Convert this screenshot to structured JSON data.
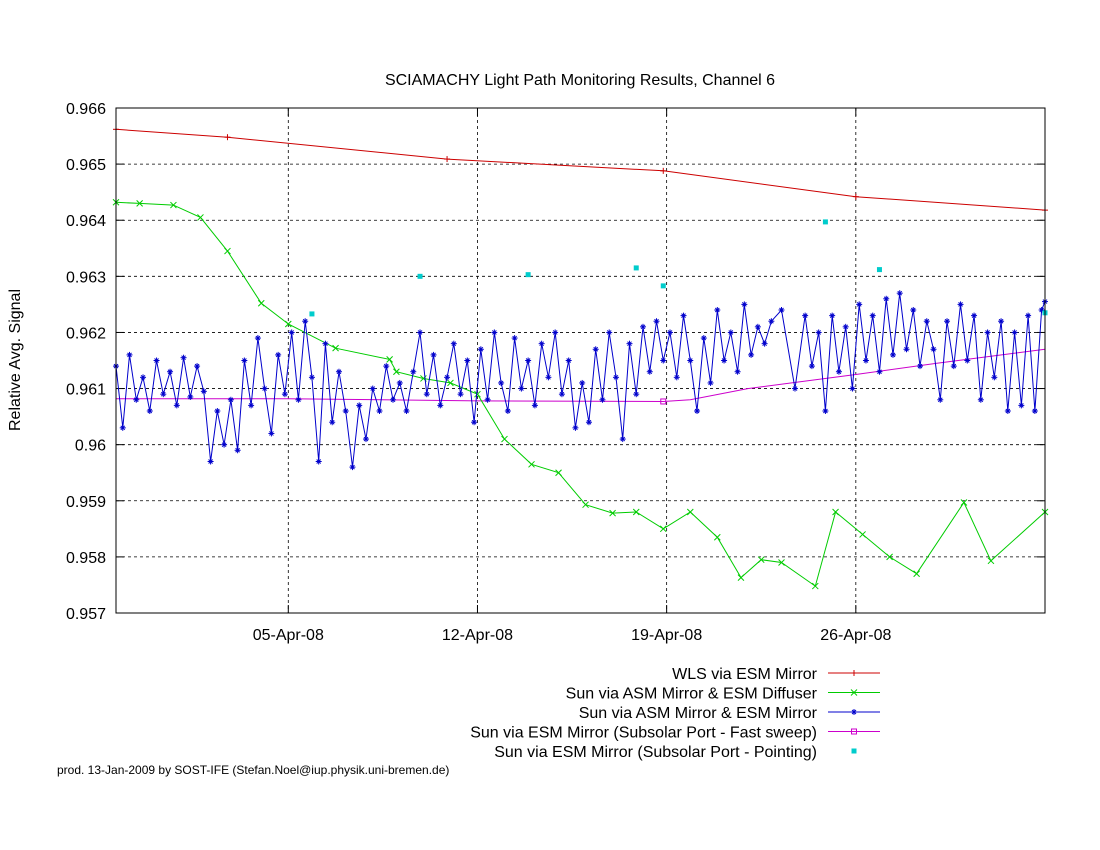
{
  "chart_data": {
    "type": "line",
    "title": "SCIAMACHY Light Path Monitoring Results, Channel 6",
    "xlabel": "",
    "ylabel": "Relative Avg. Signal",
    "x_axis_type": "date",
    "xlim": [
      "2008-03-29T15:00",
      "2008-05-03T00:00"
    ],
    "ylim": [
      0.957,
      0.966
    ],
    "x_ticks": [
      "05-Apr-08",
      "12-Apr-08",
      "19-Apr-08",
      "26-Apr-08"
    ],
    "y_ticks": [
      "0.957",
      "0.958",
      "0.959",
      "0.96",
      "0.961",
      "0.962",
      "0.963",
      "0.964",
      "0.965",
      "0.966"
    ],
    "grid": true,
    "legend_position": "below-plot-right",
    "series": [
      {
        "name": "WLS via ESM Mirror",
        "color": "#cc0000",
        "marker": "+",
        "points": [
          [
            "2008-03-29T15:00",
            0.96562
          ],
          [
            "2008-04-02T18:00",
            0.96548
          ],
          [
            "2008-04-10T21:00",
            0.96509
          ],
          [
            "2008-04-18T21:00",
            0.96488
          ],
          [
            "2008-04-26T00:00",
            0.96442
          ],
          [
            "2008-05-03T00:00",
            0.96418
          ]
        ]
      },
      {
        "name": "Sun via ASM Mirror & ESM Diffuser",
        "color": "#00cc00",
        "marker": "x",
        "points": [
          [
            "2008-03-29T15:00",
            0.96432
          ],
          [
            "2008-03-30T12:00",
            0.9643
          ],
          [
            "2008-03-31T18:00",
            0.96427
          ],
          [
            "2008-04-01T18:00",
            0.96405
          ],
          [
            "2008-04-02T18:00",
            0.96345
          ],
          [
            "2008-04-04T00:00",
            0.96252
          ],
          [
            "2008-04-05T00:00",
            0.96215
          ],
          [
            "2008-04-06T18:00",
            0.96172
          ],
          [
            "2008-04-08T18:00",
            0.96152
          ],
          [
            "2008-04-09T00:00",
            0.9613
          ],
          [
            "2008-04-10T00:00",
            0.96118
          ],
          [
            "2008-04-11T00:00",
            0.9611
          ],
          [
            "2008-04-12T00:00",
            0.9609
          ],
          [
            "2008-04-13T00:00",
            0.9601
          ],
          [
            "2008-04-14T00:00",
            0.95965
          ],
          [
            "2008-04-15T00:00",
            0.9595
          ],
          [
            "2008-04-16T00:00",
            0.95893
          ],
          [
            "2008-04-17T00:00",
            0.95878
          ],
          [
            "2008-04-17T21:00",
            0.9588
          ],
          [
            "2008-04-18T21:00",
            0.9585
          ],
          [
            "2008-04-19T21:00",
            0.9588
          ],
          [
            "2008-04-20T21:00",
            0.95835
          ],
          [
            "2008-04-21T18:00",
            0.95763
          ],
          [
            "2008-04-22T12:00",
            0.95795
          ],
          [
            "2008-04-23T06:00",
            0.9579
          ],
          [
            "2008-04-24T12:00",
            0.95748
          ],
          [
            "2008-04-25T06:00",
            0.9588
          ],
          [
            "2008-04-26T06:00",
            0.9584
          ],
          [
            "2008-04-27T06:00",
            0.958
          ],
          [
            "2008-04-28T06:00",
            0.9577
          ],
          [
            "2008-04-30T00:00",
            0.95897
          ],
          [
            "2008-05-01T00:00",
            0.95793
          ],
          [
            "2008-05-03T00:00",
            0.9588
          ]
        ]
      },
      {
        "name": "Sun via ASM Mirror & ESM Mirror",
        "color": "#0000cc",
        "marker": "*",
        "approximate": true,
        "points": [
          [
            "2008-03-29T15:00",
            0.9614
          ],
          [
            "2008-03-29T21:00",
            0.9603
          ],
          [
            "2008-03-30T03:00",
            0.9616
          ],
          [
            "2008-03-30T09:00",
            0.9608
          ],
          [
            "2008-03-30T15:00",
            0.9612
          ],
          [
            "2008-03-30T21:00",
            0.9606
          ],
          [
            "2008-03-31T03:00",
            0.9615
          ],
          [
            "2008-03-31T09:00",
            0.9609
          ],
          [
            "2008-03-31T15:00",
            0.9613
          ],
          [
            "2008-03-31T21:00",
            0.9607
          ],
          [
            "2008-04-01T03:00",
            0.96155
          ],
          [
            "2008-04-01T09:00",
            0.96085
          ],
          [
            "2008-04-01T15:00",
            0.9614
          ],
          [
            "2008-04-01T21:00",
            0.96095
          ],
          [
            "2008-04-02T03:00",
            0.9597
          ],
          [
            "2008-04-02T09:00",
            0.9606
          ],
          [
            "2008-04-02T15:00",
            0.96
          ],
          [
            "2008-04-02T21:00",
            0.9608
          ],
          [
            "2008-04-03T03:00",
            0.9599
          ],
          [
            "2008-04-03T09:00",
            0.9615
          ],
          [
            "2008-04-03T15:00",
            0.9607
          ],
          [
            "2008-04-03T21:00",
            0.9619
          ],
          [
            "2008-04-04T03:00",
            0.961
          ],
          [
            "2008-04-04T09:00",
            0.9602
          ],
          [
            "2008-04-04T15:00",
            0.9616
          ],
          [
            "2008-04-04T21:00",
            0.9609
          ],
          [
            "2008-04-05T03:00",
            0.962
          ],
          [
            "2008-04-05T09:00",
            0.9608
          ],
          [
            "2008-04-05T15:00",
            0.9622
          ],
          [
            "2008-04-05T21:00",
            0.9612
          ],
          [
            "2008-04-06T03:00",
            0.9597
          ],
          [
            "2008-04-06T09:00",
            0.9618
          ],
          [
            "2008-04-06T15:00",
            0.9604
          ],
          [
            "2008-04-06T21:00",
            0.9613
          ],
          [
            "2008-04-07T03:00",
            0.9606
          ],
          [
            "2008-04-07T09:00",
            0.9596
          ],
          [
            "2008-04-07T15:00",
            0.9607
          ],
          [
            "2008-04-07T21:00",
            0.9601
          ],
          [
            "2008-04-08T03:00",
            0.961
          ],
          [
            "2008-04-08T09:00",
            0.9606
          ],
          [
            "2008-04-08T15:00",
            0.9614
          ],
          [
            "2008-04-08T21:00",
            0.9608
          ],
          [
            "2008-04-09T03:00",
            0.9611
          ],
          [
            "2008-04-09T09:00",
            0.9606
          ],
          [
            "2008-04-09T15:00",
            0.9613
          ],
          [
            "2008-04-09T21:00",
            0.962
          ],
          [
            "2008-04-10T03:00",
            0.9609
          ],
          [
            "2008-04-10T09:00",
            0.9616
          ],
          [
            "2008-04-10T15:00",
            0.9607
          ],
          [
            "2008-04-10T21:00",
            0.9612
          ],
          [
            "2008-04-11T03:00",
            0.9618
          ],
          [
            "2008-04-11T09:00",
            0.9609
          ],
          [
            "2008-04-11T15:00",
            0.9615
          ],
          [
            "2008-04-11T21:00",
            0.9604
          ],
          [
            "2008-04-12T03:00",
            0.9617
          ],
          [
            "2008-04-12T09:00",
            0.9608
          ],
          [
            "2008-04-12T15:00",
            0.962
          ],
          [
            "2008-04-12T21:00",
            0.9611
          ],
          [
            "2008-04-13T03:00",
            0.9606
          ],
          [
            "2008-04-13T09:00",
            0.9619
          ],
          [
            "2008-04-13T15:00",
            0.961
          ],
          [
            "2008-04-13T21:00",
            0.9615
          ],
          [
            "2008-04-14T03:00",
            0.9607
          ],
          [
            "2008-04-14T09:00",
            0.9618
          ],
          [
            "2008-04-14T15:00",
            0.9612
          ],
          [
            "2008-04-14T21:00",
            0.962
          ],
          [
            "2008-04-15T03:00",
            0.9609
          ],
          [
            "2008-04-15T09:00",
            0.9615
          ],
          [
            "2008-04-15T15:00",
            0.9603
          ],
          [
            "2008-04-15T21:00",
            0.9611
          ],
          [
            "2008-04-16T03:00",
            0.9604
          ],
          [
            "2008-04-16T09:00",
            0.9617
          ],
          [
            "2008-04-16T15:00",
            0.9608
          ],
          [
            "2008-04-16T21:00",
            0.962
          ],
          [
            "2008-04-17T03:00",
            0.9612
          ],
          [
            "2008-04-17T09:00",
            0.9601
          ],
          [
            "2008-04-17T15:00",
            0.9618
          ],
          [
            "2008-04-17T21:00",
            0.9609
          ],
          [
            "2008-04-18T03:00",
            0.9621
          ],
          [
            "2008-04-18T09:00",
            0.9613
          ],
          [
            "2008-04-18T15:00",
            0.9622
          ],
          [
            "2008-04-18T21:00",
            0.9615
          ],
          [
            "2008-04-19T03:00",
            0.962
          ],
          [
            "2008-04-19T09:00",
            0.9612
          ],
          [
            "2008-04-19T15:00",
            0.9623
          ],
          [
            "2008-04-19T21:00",
            0.9615
          ],
          [
            "2008-04-20T03:00",
            0.9606
          ],
          [
            "2008-04-20T09:00",
            0.9619
          ],
          [
            "2008-04-20T15:00",
            0.9611
          ],
          [
            "2008-04-20T21:00",
            0.9624
          ],
          [
            "2008-04-21T03:00",
            0.9615
          ],
          [
            "2008-04-21T09:00",
            0.962
          ],
          [
            "2008-04-21T15:00",
            0.9613
          ],
          [
            "2008-04-21T21:00",
            0.9625
          ],
          [
            "2008-04-22T03:00",
            0.9616
          ],
          [
            "2008-04-22T09:00",
            0.9621
          ],
          [
            "2008-04-22T15:00",
            0.9618
          ],
          [
            "2008-04-22T21:00",
            0.9622
          ],
          [
            "2008-04-23T06:00",
            0.9624
          ],
          [
            "2008-04-23T18:00",
            0.961
          ],
          [
            "2008-04-24T03:00",
            0.9623
          ],
          [
            "2008-04-24T09:00",
            0.9614
          ],
          [
            "2008-04-24T15:00",
            0.962
          ],
          [
            "2008-04-24T21:00",
            0.9606
          ],
          [
            "2008-04-25T03:00",
            0.9623
          ],
          [
            "2008-04-25T09:00",
            0.9613
          ],
          [
            "2008-04-25T15:00",
            0.9621
          ],
          [
            "2008-04-25T21:00",
            0.961
          ],
          [
            "2008-04-26T03:00",
            0.9625
          ],
          [
            "2008-04-26T09:00",
            0.9615
          ],
          [
            "2008-04-26T15:00",
            0.9623
          ],
          [
            "2008-04-26T21:00",
            0.9613
          ],
          [
            "2008-04-27T03:00",
            0.9626
          ],
          [
            "2008-04-27T09:00",
            0.9616
          ],
          [
            "2008-04-27T15:00",
            0.9627
          ],
          [
            "2008-04-27T21:00",
            0.9617
          ],
          [
            "2008-04-28T03:00",
            0.9624
          ],
          [
            "2008-04-28T09:00",
            0.9614
          ],
          [
            "2008-04-28T15:00",
            0.9622
          ],
          [
            "2008-04-28T21:00",
            0.9617
          ],
          [
            "2008-04-29T03:00",
            0.9608
          ],
          [
            "2008-04-29T09:00",
            0.9622
          ],
          [
            "2008-04-29T15:00",
            0.9614
          ],
          [
            "2008-04-29T21:00",
            0.9625
          ],
          [
            "2008-04-30T03:00",
            0.9615
          ],
          [
            "2008-04-30T09:00",
            0.9623
          ],
          [
            "2008-04-30T15:00",
            0.9608
          ],
          [
            "2008-04-30T21:00",
            0.962
          ],
          [
            "2008-05-01T03:00",
            0.9612
          ],
          [
            "2008-05-01T09:00",
            0.9622
          ],
          [
            "2008-05-01T15:00",
            0.9606
          ],
          [
            "2008-05-01T21:00",
            0.962
          ],
          [
            "2008-05-02T03:00",
            0.9607
          ],
          [
            "2008-05-02T09:00",
            0.9623
          ],
          [
            "2008-05-02T15:00",
            0.9606
          ],
          [
            "2008-05-02T21:00",
            0.9624
          ],
          [
            "2008-05-03T00:00",
            0.96255
          ]
        ]
      },
      {
        "name": "Sun via ESM Mirror (Subsolar Port - Fast sweep)",
        "color": "#cc00cc",
        "marker": "square",
        "points": [
          [
            "2008-03-29T15:00",
            0.96082
          ],
          [
            "2008-04-05T00:00",
            0.96082
          ],
          [
            "2008-04-12T00:00",
            0.96078
          ],
          [
            "2008-04-18T21:00",
            0.96077
          ],
          [
            "2008-04-19T21:00",
            0.9608
          ],
          [
            "2008-04-22T00:00",
            0.961
          ],
          [
            "2008-04-26T00:00",
            0.96125
          ],
          [
            "2008-04-29T00:00",
            0.96145
          ],
          [
            "2008-05-03T00:00",
            0.9617
          ]
        ]
      },
      {
        "name": "Sun via ESM Mirror (Subsolar Port - Pointing)",
        "color": "#00cccc",
        "marker": "dot",
        "points": [
          [
            "2008-04-05T21:00",
            0.96233
          ],
          [
            "2008-04-09T21:00",
            0.963
          ],
          [
            "2008-04-13T21:00",
            0.96303
          ],
          [
            "2008-04-17T21:00",
            0.96315
          ],
          [
            "2008-04-18T21:00",
            0.96283
          ],
          [
            "2008-04-24T21:00",
            0.96397
          ],
          [
            "2008-04-26T21:00",
            0.96312
          ],
          [
            "2008-05-03T00:00",
            0.96235
          ]
        ]
      }
    ]
  },
  "footer": "prod. 13-Jan-2009 by SOST-IFE (Stefan.Noel@iup.physik.uni-bremen.de)"
}
